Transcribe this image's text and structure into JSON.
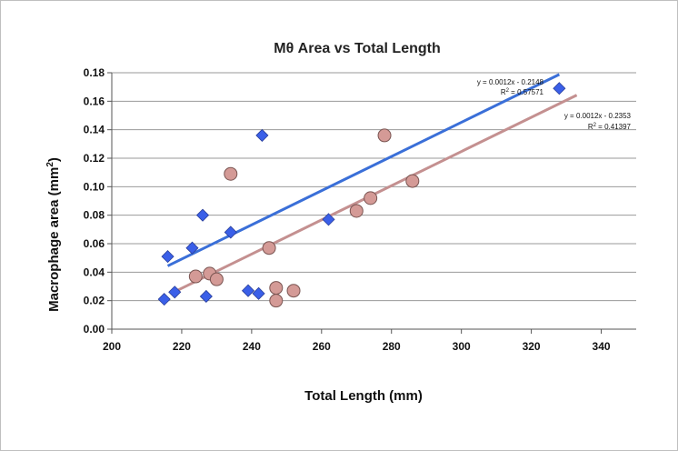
{
  "chart_data": {
    "type": "scatter",
    "title": "Mθ Area vs Total Length",
    "xlabel": "Total Length (mm)",
    "ylabel_main": "Macrophage area (mm",
    "ylabel_sup": "2",
    "ylabel_end": ")",
    "xlim": [
      200,
      350
    ],
    "ylim": [
      0,
      0.18
    ],
    "x_ticks": [
      "200",
      "220",
      "240",
      "260",
      "280",
      "300",
      "320",
      "340"
    ],
    "x_tick_values": [
      200,
      220,
      240,
      260,
      280,
      300,
      320,
      340
    ],
    "y_ticks": [
      "0.00",
      "0.02",
      "0.04",
      "0.06",
      "0.08",
      "0.10",
      "0.12",
      "0.14",
      "0.16",
      "0.18"
    ],
    "y_tick_values": [
      0,
      0.02,
      0.04,
      0.06,
      0.08,
      0.1,
      0.12,
      0.14,
      0.16,
      0.18
    ],
    "grid": "horizontal",
    "legend": "none",
    "series": [
      {
        "marker": "diamond",
        "color": "#3a5fe8",
        "points": [
          [
            215,
            0.021
          ],
          [
            216,
            0.051
          ],
          [
            218,
            0.026
          ],
          [
            223,
            0.057
          ],
          [
            226,
            0.08
          ],
          [
            227,
            0.023
          ],
          [
            234,
            0.068
          ],
          [
            239,
            0.027
          ],
          [
            242,
            0.025
          ],
          [
            243,
            0.136
          ],
          [
            262,
            0.077
          ],
          [
            328,
            0.169
          ]
        ],
        "trendline": {
          "x": [
            216,
            328
          ],
          "slope": 0.0012,
          "intercept": -0.2148,
          "line_color": "#3a6fd8",
          "equation": "y = 0.0012x - 0.2148",
          "r2_label": "R",
          "r2_sup": "2",
          "r2_value": " = 0.57571"
        }
      },
      {
        "marker": "circle",
        "color": "#d49a96",
        "points": [
          [
            224,
            0.037
          ],
          [
            228,
            0.039
          ],
          [
            230,
            0.035
          ],
          [
            234,
            0.109
          ],
          [
            245,
            0.057
          ],
          [
            247,
            0.029
          ],
          [
            247,
            0.02
          ],
          [
            252,
            0.027
          ],
          [
            270,
            0.083
          ],
          [
            274,
            0.092
          ],
          [
            278,
            0.136
          ],
          [
            286,
            0.104
          ]
        ],
        "trendline": {
          "x": [
            217,
            333
          ],
          "slope": 0.0012,
          "intercept": -0.2353,
          "line_color": "#c49090",
          "equation": "y = 0.0012x - 0.2353",
          "r2_label": "R",
          "r2_sup": "2",
          "r2_value": " = 0.41397"
        }
      }
    ]
  }
}
